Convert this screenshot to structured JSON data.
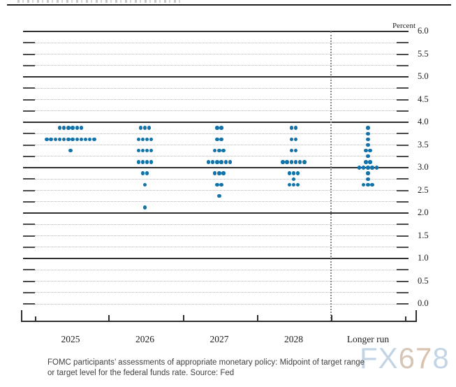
{
  "header": {
    "percent_label": "Percent"
  },
  "caption": {
    "line1": "FOMC participants’ assessments of appropriate monetary policy: Midpoint of target range",
    "line2": "or target level for the federal funds rate. Source: Fed"
  },
  "watermark": {
    "text": "FX678",
    "letters": [
      {
        "ch": "F",
        "color": "#c3d4e4"
      },
      {
        "ch": "X",
        "color": "#c3d4e4"
      },
      {
        "ch": "6",
        "color": "#d5c6b5"
      },
      {
        "ch": "7",
        "color": "#d9c3ac"
      },
      {
        "ch": "8",
        "color": "#c3d4e4"
      }
    ]
  },
  "chart_data": {
    "type": "scatter",
    "subtype": "fomc-dot-plot",
    "title": "",
    "ylabel": "Percent",
    "ylim": [
      0.0,
      6.0
    ],
    "y_tick_step": 0.25,
    "y_label_step": 0.5,
    "y_tick_labels": [
      "6.0",
      "5.5",
      "5.0",
      "4.5",
      "4.0",
      "3.5",
      "3.0",
      "2.5",
      "2.0",
      "1.5",
      "1.0",
      "0.5",
      "0.0"
    ],
    "solid_line_values": [
      6.0,
      5.0,
      4.0,
      3.0,
      2.0,
      1.0
    ],
    "grid": "dotted horizontal lines every 0.25, solid at whole percents",
    "legend": "none",
    "dot_color": "#1273ab",
    "categories": [
      "2025",
      "2026",
      "2027",
      "2028",
      "Longer run"
    ],
    "separator_before_category": "Longer run",
    "series": [
      {
        "name": "2025",
        "dots": [
          {
            "value": 3.875,
            "count": 6
          },
          {
            "value": 3.625,
            "count": 12
          },
          {
            "value": 3.375,
            "count": 1
          }
        ]
      },
      {
        "name": "2026",
        "dots": [
          {
            "value": 3.875,
            "count": 3
          },
          {
            "value": 3.625,
            "count": 4
          },
          {
            "value": 3.375,
            "count": 4
          },
          {
            "value": 3.125,
            "count": 4
          },
          {
            "value": 2.875,
            "count": 2
          },
          {
            "value": 2.625,
            "count": 1
          },
          {
            "value": 2.125,
            "count": 1
          }
        ]
      },
      {
        "name": "2027",
        "dots": [
          {
            "value": 3.875,
            "count": 2
          },
          {
            "value": 3.625,
            "count": 2
          },
          {
            "value": 3.375,
            "count": 3
          },
          {
            "value": 3.125,
            "count": 6
          },
          {
            "value": 2.875,
            "count": 3
          },
          {
            "value": 2.625,
            "count": 2
          },
          {
            "value": 2.375,
            "count": 1
          }
        ]
      },
      {
        "name": "2028",
        "dots": [
          {
            "value": 3.875,
            "count": 2
          },
          {
            "value": 3.625,
            "count": 2
          },
          {
            "value": 3.375,
            "count": 2
          },
          {
            "value": 3.125,
            "count": 6
          },
          {
            "value": 2.875,
            "count": 3
          },
          {
            "value": 2.75,
            "count": 1
          },
          {
            "value": 2.625,
            "count": 3
          }
        ]
      },
      {
        "name": "Longer run",
        "dots": [
          {
            "value": 3.875,
            "count": 1
          },
          {
            "value": 3.75,
            "count": 1
          },
          {
            "value": 3.625,
            "count": 1
          },
          {
            "value": 3.5,
            "count": 1
          },
          {
            "value": 3.375,
            "count": 2
          },
          {
            "value": 3.25,
            "count": 1
          },
          {
            "value": 3.125,
            "count": 2
          },
          {
            "value": 3.0,
            "count": 5
          },
          {
            "value": 2.875,
            "count": 1
          },
          {
            "value": 2.75,
            "count": 1
          },
          {
            "value": 2.625,
            "count": 3
          }
        ]
      }
    ]
  }
}
